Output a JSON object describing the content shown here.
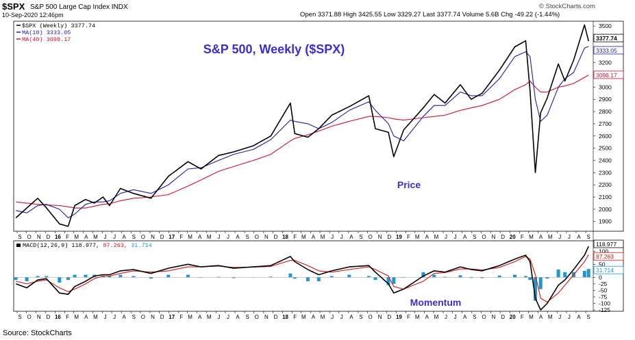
{
  "header": {
    "symbol": "$SPX",
    "name": "S&P 500 Large Cap Index INDX",
    "date": "10-Sep-2020 12:46pm",
    "quote": "Open 3371.88  High 3425.55  Low 3329.27  Last 3377.74  Volume 5.6B  Chg -49.22 (-1.44%)",
    "logo": "© StockCharts.com"
  },
  "footer": "Source: StockCharts",
  "colors": {
    "price": "#000000",
    "ma10": "#1c1caa",
    "ma40": "#d01030",
    "macd": "#000000",
    "signal": "#dd1111",
    "hist": "#1a9ad0",
    "annotation": "#3b2fd0"
  },
  "chart_data": [
    {
      "type": "line",
      "title": "S&P 500, Weekly ($SPX)",
      "annotation": "Price",
      "legend": [
        {
          "label": "$SPX (Weekly) 3377.74",
          "color": "#000000"
        },
        {
          "label": "MA(10) 3333.05",
          "color": "#1c1caa"
        },
        {
          "label": "MA(40) 3098.17",
          "color": "#d01030"
        }
      ],
      "legend_position": "top-left",
      "last_value_tags": [
        "3377.74",
        "3333.05",
        "3098.17"
      ],
      "y_ticks": [
        "1900",
        "2000",
        "2100",
        "2200",
        "2300",
        "2400",
        "2500",
        "2600",
        "2700",
        "2800",
        "2900",
        "3000",
        "3100",
        "3200",
        "3300",
        "3400",
        "3500"
      ],
      "ylim": [
        1820,
        3540
      ],
      "x_month_labels": [
        "S",
        "O",
        "N",
        "D",
        "16",
        "F",
        "M",
        "A",
        "M",
        "J",
        "J",
        "A",
        "S",
        "O",
        "N",
        "D",
        "17",
        "F",
        "M",
        "A",
        "M",
        "J",
        "J",
        "A",
        "S",
        "O",
        "N",
        "D",
        "18",
        "F",
        "M",
        "A",
        "M",
        "J",
        "J",
        "A",
        "S",
        "O",
        "N",
        "D",
        "19",
        "F",
        "M",
        "A",
        "M",
        "J",
        "J",
        "A",
        "S",
        "O",
        "N",
        "D",
        "20",
        "F",
        "M",
        "A",
        "M",
        "J",
        "J",
        "A",
        "S"
      ],
      "x_dates": [
        "2015-08-28",
        "2015-10-02",
        "2015-11-06",
        "2015-12-04",
        "2016-01-15",
        "2016-02-12",
        "2016-03-04",
        "2016-04-08",
        "2016-05-06",
        "2016-06-03",
        "2016-06-24",
        "2016-07-29",
        "2016-09-09",
        "2016-11-04",
        "2016-12-30",
        "2017-03-03",
        "2017-04-14",
        "2017-06-09",
        "2017-07-28",
        "2017-09-29",
        "2017-11-24",
        "2018-01-26",
        "2018-02-09",
        "2018-03-23",
        "2018-04-27",
        "2018-06-08",
        "2018-08-03",
        "2018-10-05",
        "2018-10-26",
        "2018-12-07",
        "2018-12-24",
        "2019-01-25",
        "2019-03-29",
        "2019-05-03",
        "2019-06-07",
        "2019-07-26",
        "2019-08-30",
        "2019-10-04",
        "2019-11-29",
        "2020-01-17",
        "2020-02-21",
        "2020-03-06",
        "2020-03-23",
        "2020-04-09",
        "2020-04-30",
        "2020-06-05",
        "2020-06-26",
        "2020-07-24",
        "2020-08-28",
        "2020-09-10"
      ],
      "series": [
        {
          "name": "$SPX (Weekly)",
          "values": [
            1930,
            2010,
            2090,
            2012,
            1880,
            1860,
            2030,
            2080,
            2050,
            2100,
            2030,
            2170,
            2130,
            2090,
            2270,
            2390,
            2330,
            2440,
            2470,
            2520,
            2600,
            2870,
            2620,
            2590,
            2660,
            2770,
            2840,
            2930,
            2660,
            2630,
            2430,
            2650,
            2830,
            2940,
            2870,
            3020,
            2900,
            2950,
            3140,
            3330,
            3380,
            2970,
            2300,
            2790,
            2910,
            3190,
            3050,
            3220,
            3510,
            3377
          ]
        },
        {
          "name": "MA(10)",
          "values": [
            1990,
            1970,
            2030,
            2040,
            2000,
            1930,
            1960,
            2040,
            2060,
            2060,
            2070,
            2130,
            2160,
            2130,
            2200,
            2330,
            2340,
            2400,
            2450,
            2490,
            2570,
            2730,
            2720,
            2700,
            2660,
            2710,
            2810,
            2880,
            2810,
            2700,
            2600,
            2560,
            2760,
            2850,
            2850,
            2960,
            2930,
            2930,
            3070,
            3250,
            3290,
            3250,
            2900,
            2720,
            2770,
            3000,
            3070,
            3120,
            3320,
            3333
          ]
        },
        {
          "name": "MA(40)",
          "values": [
            2060,
            2050,
            2040,
            2035,
            2030,
            2020,
            2010,
            2010,
            2025,
            2040,
            2045,
            2070,
            2090,
            2100,
            2120,
            2190,
            2240,
            2310,
            2350,
            2400,
            2450,
            2560,
            2580,
            2610,
            2640,
            2680,
            2720,
            2760,
            2760,
            2750,
            2740,
            2730,
            2750,
            2760,
            2770,
            2810,
            2830,
            2850,
            2900,
            2980,
            3020,
            3050,
            3000,
            2960,
            2960,
            3000,
            3010,
            3030,
            3080,
            3098
          ]
        }
      ]
    },
    {
      "type": "line",
      "annotation": "Momentum",
      "legend": [
        {
          "label": "MACD(12,26,9) 118.977, ",
          "color": "#000000"
        },
        {
          "label": "87.263, ",
          "color": "#dd1111"
        },
        {
          "label": "31.714",
          "color": "#1a9ad0"
        }
      ],
      "legend_position": "top-left",
      "last_value_tags": [
        "118.977",
        "87.263",
        "31.714"
      ],
      "y_ticks": [
        "-125",
        "-100",
        "-75",
        "-50",
        "-25",
        "0",
        "50",
        "100"
      ],
      "ylim": [
        -130,
        140
      ],
      "x_dates": [
        "2015-08-28",
        "2015-10-02",
        "2015-11-06",
        "2015-12-04",
        "2016-01-15",
        "2016-02-12",
        "2016-03-04",
        "2016-04-08",
        "2016-05-06",
        "2016-06-03",
        "2016-06-24",
        "2016-07-29",
        "2016-09-09",
        "2016-11-04",
        "2016-12-30",
        "2017-03-03",
        "2017-04-14",
        "2017-06-09",
        "2017-07-28",
        "2017-09-29",
        "2017-11-24",
        "2018-01-26",
        "2018-02-09",
        "2018-03-23",
        "2018-04-27",
        "2018-06-08",
        "2018-08-03",
        "2018-10-05",
        "2018-10-26",
        "2018-12-07",
        "2018-12-24",
        "2019-01-25",
        "2019-03-29",
        "2019-05-03",
        "2019-06-07",
        "2019-07-26",
        "2019-08-30",
        "2019-10-04",
        "2019-11-29",
        "2020-01-17",
        "2020-02-21",
        "2020-03-06",
        "2020-03-23",
        "2020-04-09",
        "2020-04-30",
        "2020-06-05",
        "2020-06-26",
        "2020-07-24",
        "2020-08-28",
        "2020-09-10"
      ],
      "series": [
        {
          "name": "MACD(12,26,9)",
          "values": [
            -25,
            -40,
            -10,
            -5,
            -60,
            -65,
            -35,
            -15,
            5,
            10,
            10,
            25,
            30,
            15,
            35,
            50,
            40,
            45,
            35,
            40,
            45,
            80,
            60,
            30,
            10,
            25,
            40,
            45,
            20,
            -25,
            -60,
            -45,
            5,
            25,
            20,
            40,
            30,
            25,
            45,
            70,
            85,
            60,
            -80,
            -125,
            -100,
            -30,
            -10,
            30,
            85,
            119
          ]
        },
        {
          "name": "signal",
          "values": [
            -15,
            -25,
            -15,
            -10,
            -40,
            -55,
            -45,
            -25,
            -5,
            5,
            5,
            15,
            25,
            20,
            25,
            40,
            40,
            43,
            38,
            39,
            42,
            65,
            65,
            45,
            25,
            20,
            30,
            40,
            30,
            5,
            -35,
            -45,
            -15,
            15,
            18,
            32,
            32,
            28,
            38,
            60,
            80,
            70,
            10,
            -80,
            -95,
            -60,
            -30,
            10,
            60,
            87
          ]
        },
        {
          "name": "histogram",
          "values": [
            -10,
            -15,
            5,
            5,
            -20,
            -10,
            10,
            10,
            10,
            5,
            5,
            10,
            5,
            -5,
            10,
            10,
            0,
            2,
            -3,
            1,
            3,
            15,
            -5,
            -15,
            -15,
            5,
            10,
            5,
            -10,
            -30,
            -25,
            0,
            20,
            10,
            2,
            8,
            -2,
            -3,
            7,
            10,
            5,
            -10,
            -90,
            -45,
            -5,
            30,
            20,
            20,
            25,
            32
          ]
        }
      ]
    }
  ]
}
